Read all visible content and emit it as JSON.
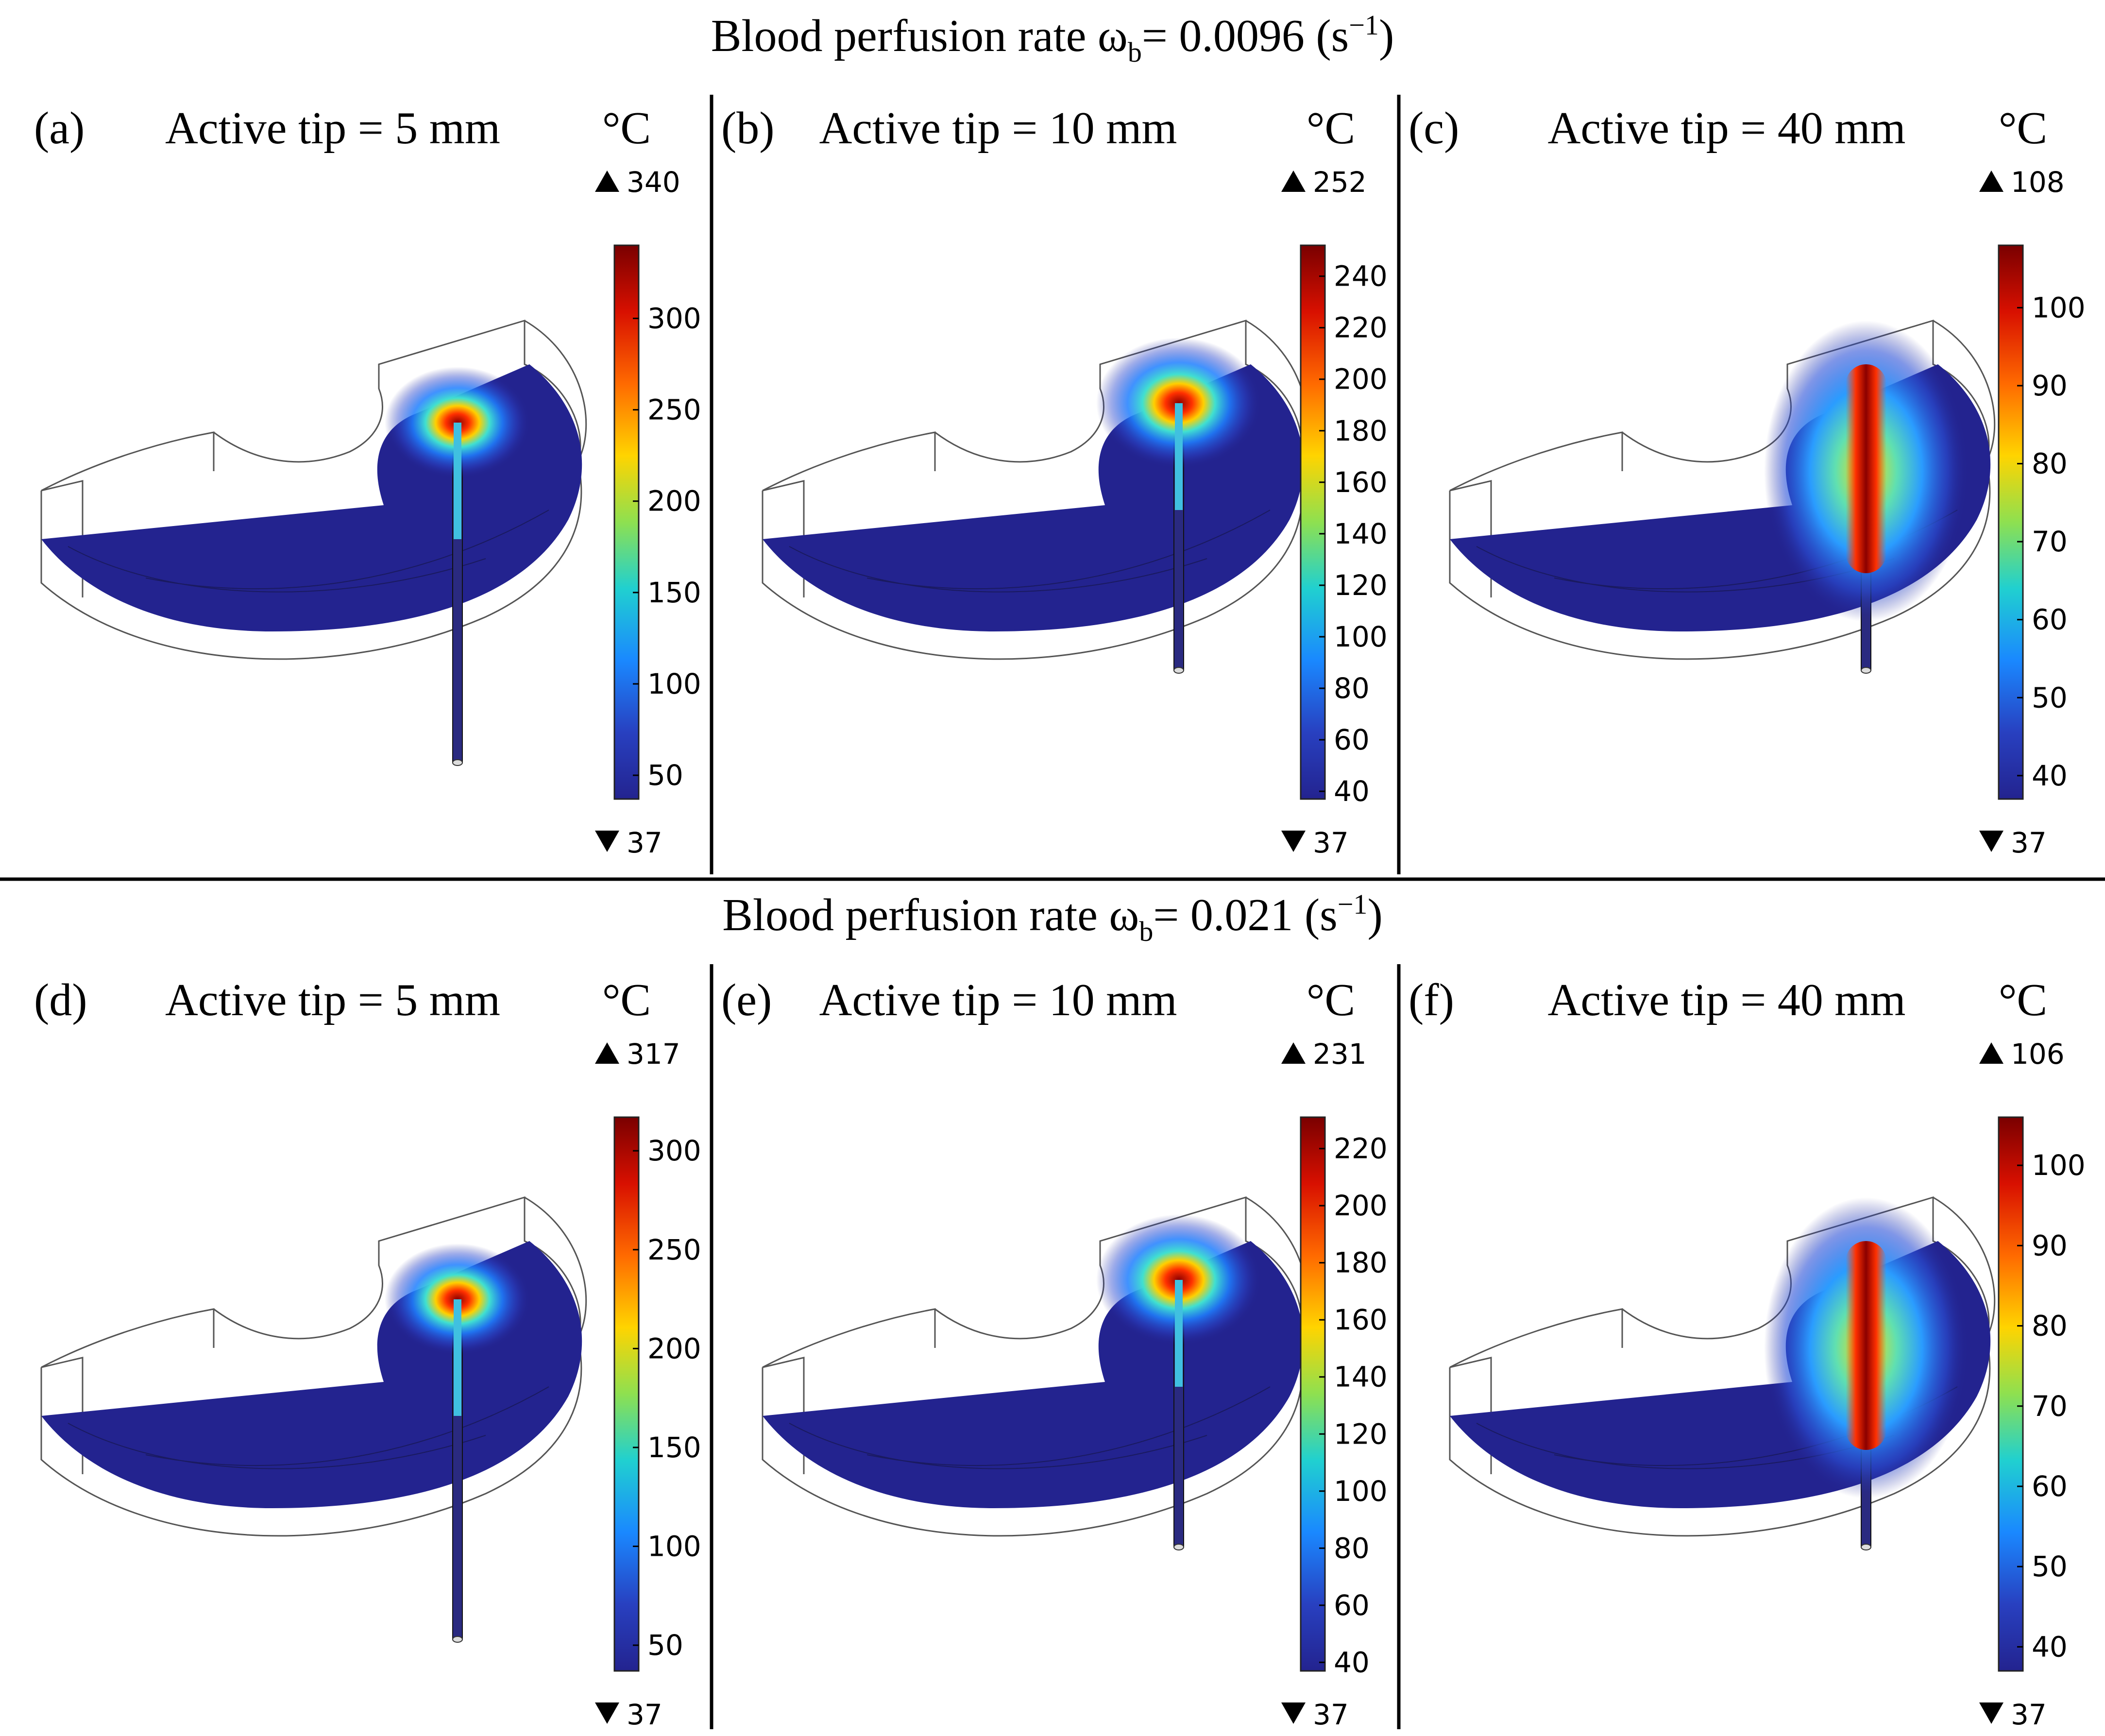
{
  "rows": [
    {
      "title_prefix": "Blood perfusion rate ω",
      "title_sub": "b",
      "title_suffix": "= 0.0096 (s",
      "title_sup": "−1",
      "title_end": ")",
      "panels": [
        {
          "label": "(a)",
          "title": "Active tip = 5 mm",
          "unit": "°C",
          "max_label": "340",
          "min_label": "37",
          "ticks": [
            "300",
            "250",
            "200",
            "150",
            "100",
            "50"
          ],
          "heat_shape": "spot"
        },
        {
          "label": "(b)",
          "title": "Active tip = 10 mm",
          "unit": "°C",
          "max_label": "252",
          "min_label": "37",
          "ticks": [
            "240",
            "220",
            "200",
            "180",
            "160",
            "140",
            "120",
            "100",
            "80",
            "60",
            "40"
          ],
          "heat_shape": "spot"
        },
        {
          "label": "(c)",
          "title": "Active tip = 40 mm",
          "unit": "°C",
          "max_label": "108",
          "min_label": "37",
          "ticks": [
            "100",
            "90",
            "80",
            "70",
            "60",
            "50",
            "40"
          ],
          "heat_shape": "elongated"
        }
      ]
    },
    {
      "title_prefix": "Blood perfusion rate ω",
      "title_sub": "b",
      "title_suffix": "= 0.021 (s",
      "title_sup": "−1",
      "title_end": ")",
      "panels": [
        {
          "label": "(d)",
          "title": "Active tip = 5 mm",
          "unit": "°C",
          "max_label": "317",
          "min_label": "37",
          "ticks": [
            "300",
            "250",
            "200",
            "150",
            "100",
            "50"
          ],
          "heat_shape": "spot"
        },
        {
          "label": "(e)",
          "title": "Active tip = 10 mm",
          "unit": "°C",
          "max_label": "231",
          "min_label": "37",
          "ticks": [
            "220",
            "200",
            "180",
            "160",
            "140",
            "120",
            "100",
            "80",
            "60",
            "40"
          ],
          "heat_shape": "spot"
        },
        {
          "label": "(f)",
          "title": "Active tip = 40 mm",
          "unit": "°C",
          "max_label": "106",
          "min_label": "37",
          "ticks": [
            "100",
            "90",
            "80",
            "70",
            "60",
            "50",
            "40"
          ],
          "heat_shape": "elongated"
        }
      ]
    }
  ],
  "colors": {
    "cold": "#23238f",
    "hot": "#8b0000",
    "colormap": [
      "#8b0000",
      "#e01000",
      "#ff7000",
      "#ffd800",
      "#7ae05a",
      "#20d0d0",
      "#1a90ff",
      "#2840c0",
      "#23238f"
    ]
  }
}
